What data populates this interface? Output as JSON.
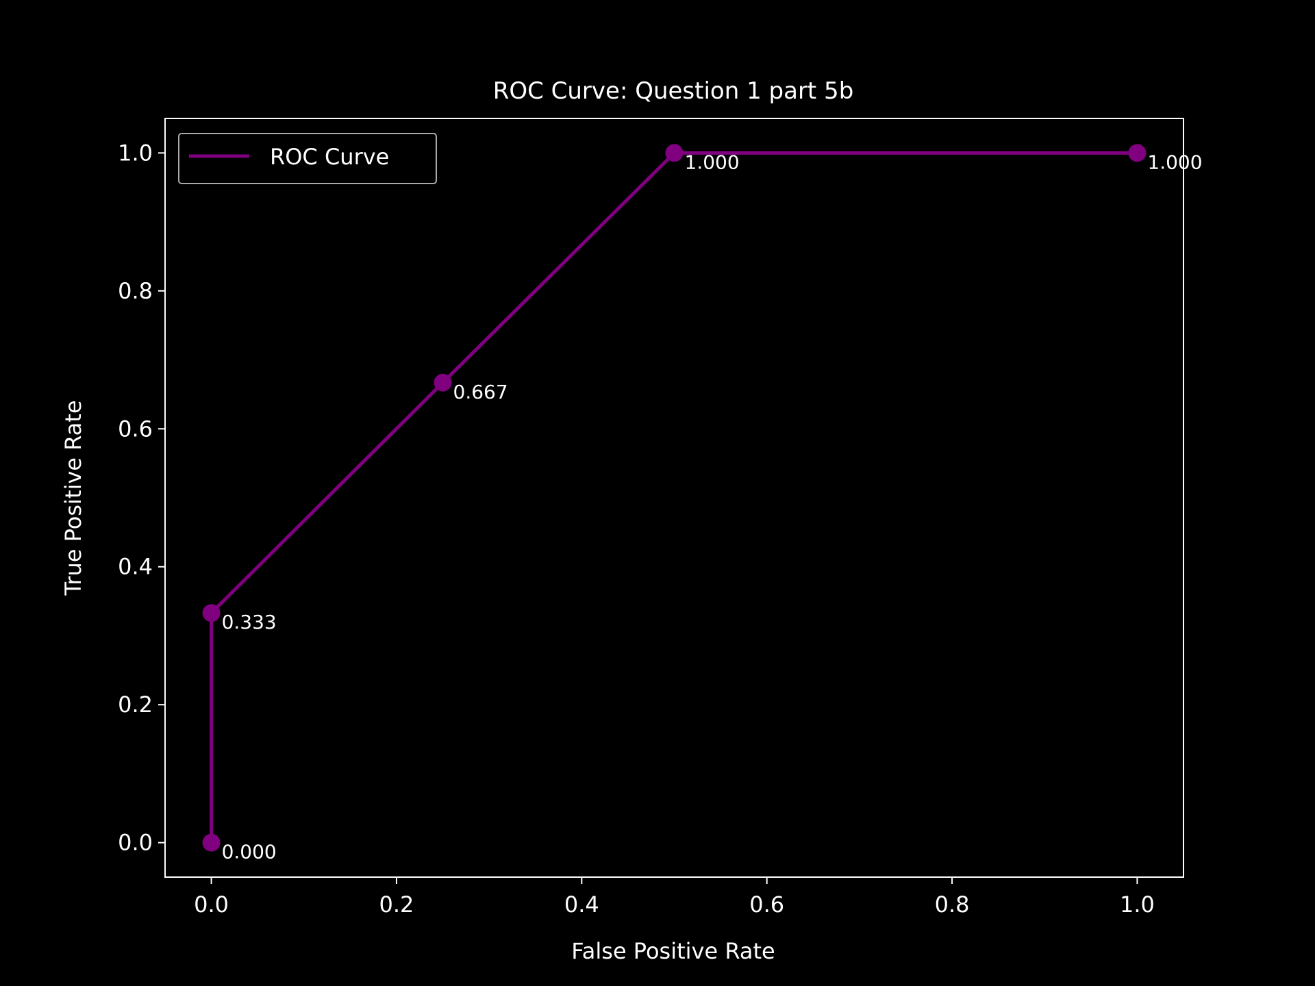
{
  "chart_data": {
    "type": "line",
    "title": "ROC Curve: Question 1 part 5b",
    "xlabel": "False Positive Rate",
    "ylabel": "True Positive Rate",
    "xlim": [
      -0.05,
      1.05
    ],
    "ylim": [
      -0.05,
      1.05
    ],
    "x_ticks": [
      0.0,
      0.2,
      0.4,
      0.6,
      0.8,
      1.0
    ],
    "y_ticks": [
      0.0,
      0.2,
      0.4,
      0.6,
      0.8,
      1.0
    ],
    "x_tick_labels": [
      "0.0",
      "0.2",
      "0.4",
      "0.6",
      "0.8",
      "1.0"
    ],
    "y_tick_labels": [
      "0.0",
      "0.2",
      "0.4",
      "0.6",
      "0.8",
      "1.0"
    ],
    "grid": false,
    "legend_position": "upper-left",
    "background": "#000000",
    "foreground": "#ffffff",
    "series": [
      {
        "name": "ROC Curve",
        "color": "#800080",
        "x": [
          0.0,
          0.0,
          0.25,
          0.5,
          1.0
        ],
        "y": [
          0.0,
          0.333,
          0.667,
          1.0,
          1.0
        ],
        "point_labels": [
          "0.000",
          "0.333",
          "0.667",
          "1.000",
          "1.000"
        ]
      }
    ]
  }
}
